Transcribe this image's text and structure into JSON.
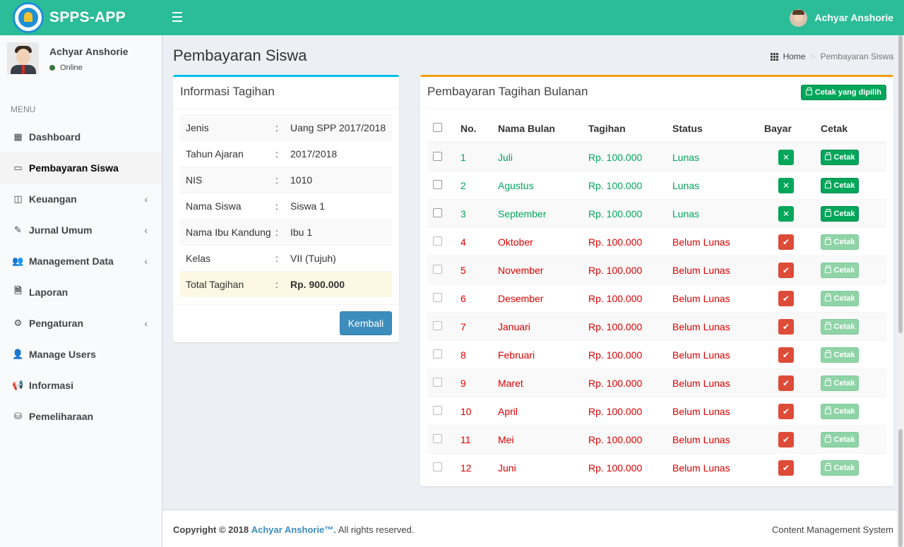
{
  "app": {
    "logo_text": "SPPS-APP",
    "user_name": "Achyar Anshorie"
  },
  "sidebar": {
    "user_name": "Achyar Anshorie",
    "status": "Online",
    "menu_header": "MENU",
    "items": [
      {
        "label": "Dashboard",
        "icon": "grid-icon",
        "glyph": "▦",
        "chevron": false,
        "active": false
      },
      {
        "label": "Pembayaran Siswa",
        "icon": "credit-card-icon",
        "glyph": "▭",
        "chevron": false,
        "active": true
      },
      {
        "label": "Keuangan",
        "icon": "money-icon",
        "glyph": "◫",
        "chevron": true,
        "active": false
      },
      {
        "label": "Jurnal Umum",
        "icon": "edit-icon",
        "glyph": "✎",
        "chevron": true,
        "active": false
      },
      {
        "label": "Management Data",
        "icon": "users-icon",
        "glyph": "👥",
        "chevron": true,
        "active": false
      },
      {
        "label": "Laporan",
        "icon": "file-icon",
        "glyph": "🗎",
        "chevron": false,
        "active": false
      },
      {
        "label": "Pengaturan",
        "icon": "gear-icon",
        "glyph": "⚙",
        "chevron": true,
        "active": false
      },
      {
        "label": "Manage Users",
        "icon": "user-icon",
        "glyph": "👤",
        "chevron": false,
        "active": false
      },
      {
        "label": "Informasi",
        "icon": "bullhorn-icon",
        "glyph": "📢",
        "chevron": false,
        "active": false
      },
      {
        "label": "Pemeliharaan",
        "icon": "database-icon",
        "glyph": "⛁",
        "chevron": false,
        "active": false
      }
    ]
  },
  "page": {
    "title": "Pembayaran Siswa",
    "breadcrumb": {
      "home": "Home",
      "separator": ">",
      "current": "Pembayaran Siswa"
    }
  },
  "info_box": {
    "title": "Informasi Tagihan",
    "rows": [
      {
        "label": "Jenis",
        "value": "Uang SPP 2017/2018"
      },
      {
        "label": "Tahun Ajaran",
        "value": "2017/2018"
      },
      {
        "label": "NIS",
        "value": "1010"
      },
      {
        "label": "Nama Siswa",
        "value": "Siswa 1"
      },
      {
        "label": "Nama Ibu Kandung",
        "value": "Ibu 1"
      },
      {
        "label": "Kelas",
        "value": "VII (Tujuh)"
      },
      {
        "label": "Total Tagihan",
        "value": "Rp. 900.000"
      }
    ],
    "colon": ":",
    "back_button": "Kembali"
  },
  "payment_box": {
    "title": "Pembayaran Tagihan Bulanan",
    "print_selected": "Cetak yang dipilih",
    "headers": {
      "no": "No.",
      "bulan": "Nama Bulan",
      "tagihan": "Tagihan",
      "status": "Status",
      "bayar": "Bayar",
      "cetak": "Cetak"
    },
    "print_label": "Cetak",
    "rows": [
      {
        "no": "1",
        "bulan": "Juli",
        "tagihan": "Rp. 100.000",
        "status": "Lunas",
        "paid": true
      },
      {
        "no": "2",
        "bulan": "Agustus",
        "tagihan": "Rp. 100.000",
        "status": "Lunas",
        "paid": true
      },
      {
        "no": "3",
        "bulan": "September",
        "tagihan": "Rp. 100.000",
        "status": "Lunas",
        "paid": true
      },
      {
        "no": "4",
        "bulan": "Oktober",
        "tagihan": "Rp. 100.000",
        "status": "Belum Lunas",
        "paid": false
      },
      {
        "no": "5",
        "bulan": "November",
        "tagihan": "Rp. 100.000",
        "status": "Belum Lunas",
        "paid": false
      },
      {
        "no": "6",
        "bulan": "Desember",
        "tagihan": "Rp. 100.000",
        "status": "Belum Lunas",
        "paid": false
      },
      {
        "no": "7",
        "bulan": "Januari",
        "tagihan": "Rp. 100.000",
        "status": "Belum Lunas",
        "paid": false
      },
      {
        "no": "8",
        "bulan": "Februari",
        "tagihan": "Rp. 100.000",
        "status": "Belum Lunas",
        "paid": false
      },
      {
        "no": "9",
        "bulan": "Maret",
        "tagihan": "Rp. 100.000",
        "status": "Belum Lunas",
        "paid": false
      },
      {
        "no": "10",
        "bulan": "April",
        "tagihan": "Rp. 100.000",
        "status": "Belum Lunas",
        "paid": false
      },
      {
        "no": "11",
        "bulan": "Mei",
        "tagihan": "Rp. 100.000",
        "status": "Belum Lunas",
        "paid": false
      },
      {
        "no": "12",
        "bulan": "Juni",
        "tagihan": "Rp. 100.000",
        "status": "Belum Lunas",
        "paid": false
      }
    ]
  },
  "footer": {
    "copyright": "Copyright © 2018",
    "author": "Achyar Anshorie™.",
    "rights": "All rights reserved.",
    "right_text": "Content Management System"
  },
  "colors": {
    "header": "#2bbc98",
    "paid": "#00a65a",
    "unpaid": "#dd0000",
    "primary": "#3c8dbc"
  }
}
